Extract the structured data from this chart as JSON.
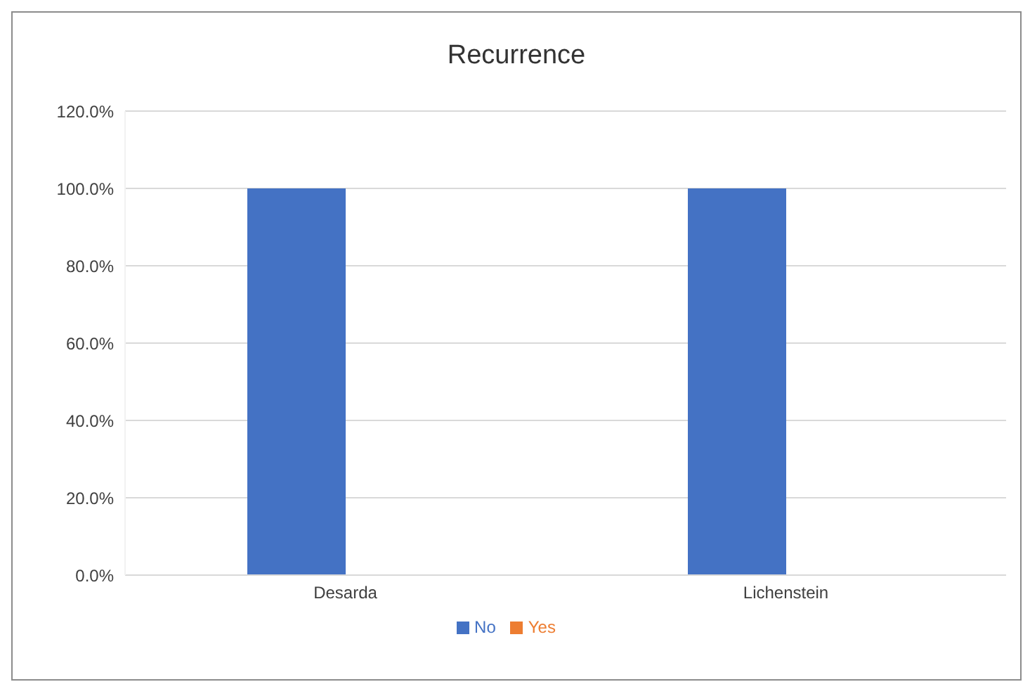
{
  "chart_data": {
    "type": "bar",
    "title": "Recurrence",
    "categories": [
      "Desarda",
      "Lichenstein"
    ],
    "series": [
      {
        "name": "No",
        "color": "#4472c4",
        "values": [
          100,
          100
        ]
      },
      {
        "name": "Yes",
        "color": "#ed7d31",
        "values": [
          0,
          0
        ]
      }
    ],
    "ylim": [
      0,
      120
    ],
    "yticks": [
      {
        "value": 0,
        "label": "0.0%"
      },
      {
        "value": 20,
        "label": "20.0%"
      },
      {
        "value": 40,
        "label": "40.0%"
      },
      {
        "value": 60,
        "label": "60.0%"
      },
      {
        "value": 80,
        "label": "80.0%"
      },
      {
        "value": 100,
        "label": "100.0%"
      },
      {
        "value": 120,
        "label": "120.0%"
      }
    ],
    "grid": "y",
    "legend": "bottom"
  }
}
